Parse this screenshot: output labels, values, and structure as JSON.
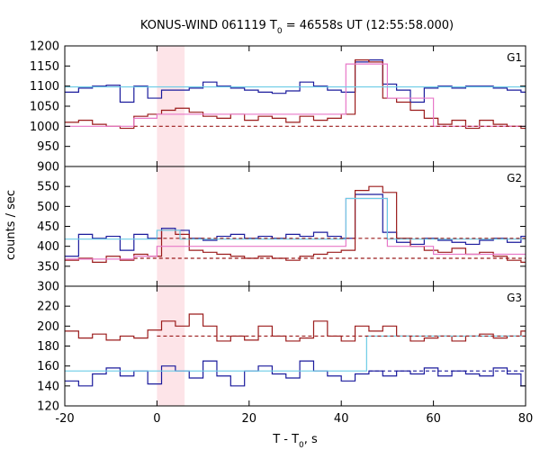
{
  "chart_data": {
    "type": "line",
    "title_main": "KONUS-WIND 061119 T",
    "title_sub": "0",
    "title_rest": " = 46558s UT (12:55:58.000)",
    "xlabel_main": "T - T",
    "xlabel_sub": "0",
    "xlabel_rest": ", s",
    "ylabel": "counts / sec",
    "xlim": [
      -20,
      80
    ],
    "x_ticks": [
      "-20",
      "0",
      "20",
      "40",
      "60",
      "80"
    ],
    "shaded_interval": [
      0,
      6
    ],
    "colors": {
      "dark_blue": "#1a1a9c",
      "dark_red": "#9b1b1b",
      "pink": "#e878c8",
      "cyan": "#6ccce6",
      "shade": "#fde4e8"
    },
    "panels": [
      {
        "label": "G1",
        "ylim": [
          900,
          1200
        ],
        "y_ticks": [
          "900",
          "950",
          "1000",
          "1050",
          "1100",
          "1150",
          "1200"
        ],
        "series": [
          {
            "color": "dark_blue",
            "style": "step",
            "x": [
              -20,
              -17,
              -14,
              -11,
              -8,
              -5,
              -2,
              1,
              4,
              7,
              10,
              13,
              16,
              19,
              22,
              25,
              28,
              31,
              34,
              37,
              40,
              43,
              46,
              49,
              52,
              55,
              58,
              61,
              64,
              67,
              70,
              73,
              76,
              79
            ],
            "y": [
              1085,
              1095,
              1100,
              1102,
              1060,
              1100,
              1070,
              1090,
              1090,
              1095,
              1110,
              1100,
              1095,
              1090,
              1085,
              1082,
              1088,
              1110,
              1100,
              1090,
              1085,
              1160,
              1165,
              1105,
              1090,
              1060,
              1095,
              1100,
              1095,
              1100,
              1100,
              1095,
              1090,
              1085
            ]
          },
          {
            "color": "dark_red",
            "style": "step",
            "x": [
              -20,
              -17,
              -14,
              -11,
              -8,
              -5,
              -2,
              1,
              4,
              7,
              10,
              13,
              16,
              19,
              22,
              25,
              28,
              31,
              34,
              37,
              40,
              43,
              46,
              49,
              52,
              55,
              58,
              61,
              64,
              67,
              70,
              73,
              76,
              79
            ],
            "y": [
              1010,
              1015,
              1005,
              1000,
              995,
              1025,
              1030,
              1040,
              1045,
              1035,
              1025,
              1020,
              1030,
              1015,
              1025,
              1020,
              1010,
              1025,
              1015,
              1020,
              1030,
              1165,
              1160,
              1070,
              1060,
              1040,
              1020,
              1005,
              1015,
              995,
              1015,
              1005,
              1000,
              995
            ]
          },
          {
            "color": "pink",
            "style": "step",
            "x": [
              -20,
              -5,
              0,
              41,
              50,
              60,
              80
            ],
            "y": [
              1000,
              1020,
              1030,
              1155,
              1070,
              1000,
              1000
            ]
          },
          {
            "color": "cyan",
            "style": "hline",
            "x": [
              -20,
              80
            ],
            "y": [
              1098,
              1098
            ]
          },
          {
            "color": "dark_red",
            "style": "dashed",
            "x": [
              -5,
              80
            ],
            "y": [
              1000,
              1000
            ]
          }
        ]
      },
      {
        "label": "G2",
        "ylim": [
          300,
          600
        ],
        "y_ticks": [
          "300",
          "350",
          "400",
          "450",
          "500",
          "550"
        ],
        "series": [
          {
            "color": "dark_blue",
            "style": "step",
            "x": [
              -20,
              -17,
              -14,
              -11,
              -8,
              -5,
              -2,
              1,
              4,
              7,
              10,
              13,
              16,
              19,
              22,
              25,
              28,
              31,
              34,
              37,
              40,
              43,
              46,
              49,
              52,
              55,
              58,
              61,
              64,
              67,
              70,
              73,
              76,
              79
            ],
            "y": [
              375,
              430,
              420,
              425,
              390,
              430,
              420,
              445,
              440,
              420,
              415,
              425,
              430,
              420,
              425,
              420,
              430,
              425,
              435,
              425,
              420,
              530,
              530,
              435,
              410,
              405,
              420,
              415,
              410,
              405,
              415,
              420,
              410,
              425
            ]
          },
          {
            "color": "dark_red",
            "style": "step",
            "x": [
              -20,
              -17,
              -14,
              -11,
              -8,
              -5,
              -2,
              1,
              4,
              7,
              10,
              13,
              16,
              19,
              22,
              25,
              28,
              31,
              34,
              37,
              40,
              43,
              46,
              49,
              52,
              55,
              58,
              61,
              64,
              67,
              70,
              73,
              76,
              79
            ],
            "y": [
              365,
              370,
              360,
              375,
              365,
              380,
              375,
              440,
              430,
              390,
              385,
              380,
              375,
              370,
              375,
              370,
              365,
              375,
              380,
              385,
              390,
              540,
              550,
              535,
              420,
              400,
              390,
              385,
              395,
              380,
              385,
              375,
              365,
              360
            ]
          },
          {
            "color": "pink",
            "style": "step",
            "x": [
              -20,
              -5,
              0,
              41,
              50,
              60,
              80
            ],
            "y": [
              368,
              375,
              400,
              520,
              400,
              380,
              380
            ]
          },
          {
            "color": "cyan",
            "style": "step",
            "x": [
              -20,
              0,
              5,
              41,
              50,
              80
            ],
            "y": [
              418,
              440,
              418,
              520,
              418,
              418
            ]
          },
          {
            "color": "dark_red",
            "style": "dashed",
            "x": [
              0,
              80
            ],
            "y": [
              420,
              420
            ]
          },
          {
            "color": "dark_red",
            "style": "dashed",
            "x": [
              -5,
              80
            ],
            "y": [
              370,
              370
            ]
          }
        ]
      },
      {
        "label": "G3",
        "ylim": [
          120,
          240
        ],
        "y_ticks": [
          "120",
          "140",
          "160",
          "180",
          "200",
          "220"
        ],
        "series": [
          {
            "color": "dark_red",
            "style": "step",
            "x": [
              -20,
              -17,
              -14,
              -11,
              -8,
              -5,
              -2,
              1,
              4,
              7,
              10,
              13,
              16,
              19,
              22,
              25,
              28,
              31,
              34,
              37,
              40,
              43,
              46,
              49,
              52,
              55,
              58,
              61,
              64,
              67,
              70,
              73,
              76,
              79
            ],
            "y": [
              195,
              188,
              192,
              186,
              190,
              188,
              196,
              205,
              200,
              212,
              200,
              185,
              190,
              186,
              200,
              190,
              185,
              188,
              205,
              190,
              185,
              200,
              195,
              200,
              190,
              185,
              188,
              190,
              185,
              190,
              192,
              188,
              190,
              195
            ]
          },
          {
            "color": "dark_blue",
            "style": "step",
            "x": [
              -20,
              -17,
              -14,
              -11,
              -8,
              -5,
              -2,
              1,
              4,
              7,
              10,
              13,
              16,
              19,
              22,
              25,
              28,
              31,
              34,
              37,
              40,
              43,
              46,
              49,
              52,
              55,
              58,
              61,
              64,
              67,
              70,
              73,
              76,
              79
            ],
            "y": [
              145,
              140,
              152,
              158,
              150,
              155,
              142,
              160,
              155,
              148,
              165,
              150,
              140,
              155,
              160,
              152,
              148,
              165,
              155,
              150,
              145,
              152,
              155,
              150,
              155,
              152,
              158,
              150,
              155,
              152,
              150,
              158,
              152,
              140
            ]
          },
          {
            "color": "cyan",
            "style": "step",
            "x": [
              -20,
              44,
              45.5,
              80
            ],
            "y": [
              155,
              155,
              190,
              190
            ]
          },
          {
            "color": "dark_red",
            "style": "dashed",
            "x": [
              0,
              80
            ],
            "y": [
              190,
              190
            ]
          },
          {
            "color": "dark_blue",
            "style": "dashed",
            "x": [
              46,
              80
            ],
            "y": [
              155,
              155
            ]
          }
        ]
      }
    ]
  }
}
